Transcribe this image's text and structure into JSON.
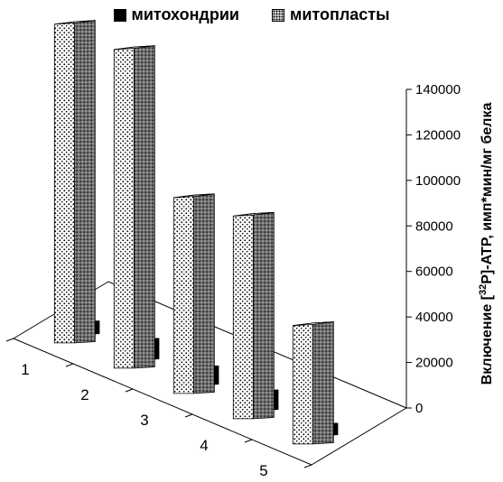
{
  "chart_data": {
    "type": "bar",
    "style": "3d-clustered",
    "categories": [
      "1",
      "2",
      "3",
      "4",
      "5"
    ],
    "series": [
      {
        "name": "митохондрии",
        "values": [
          5500,
          9000,
          8000,
          8500,
          5000
        ],
        "color": "#000000",
        "pattern": "solid"
      },
      {
        "name": "митопласты",
        "values": [
          140000,
          140000,
          86000,
          89000,
          52000
        ],
        "color": "#ffffff",
        "pattern": "dots"
      }
    ],
    "ylabel_prefix": "Включение [",
    "ylabel_sup": "32",
    "ylabel_suffix": "P]-ATP, имп*мин/мг белка",
    "ylim": [
      0,
      140000
    ],
    "yticks": [
      "0",
      "20000",
      "40000",
      "60000",
      "80000",
      "100000",
      "120000",
      "140000"
    ],
    "ytick_values": [
      0,
      20000,
      40000,
      60000,
      80000,
      100000,
      120000,
      140000
    ],
    "legend_position": "top",
    "grid": false
  }
}
